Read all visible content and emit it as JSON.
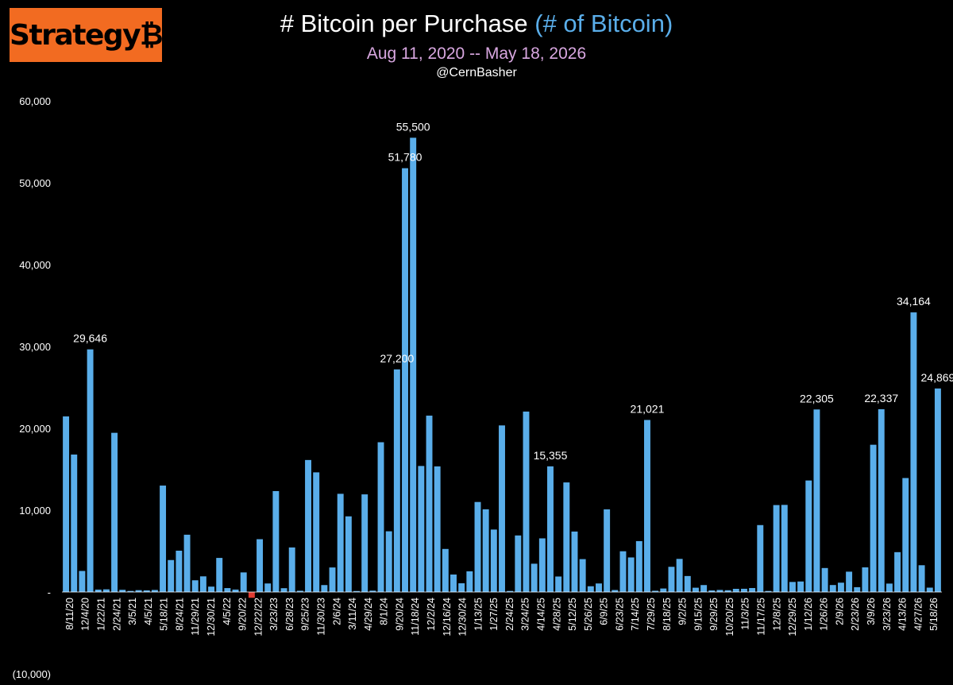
{
  "logo": {
    "text": "Strategy₿"
  },
  "title": {
    "main": "# Bitcoin per Purchase",
    "accent": "(# of Bitcoin)"
  },
  "subtitle": "Aug 11, 2020 -- May 18, 2026",
  "handle": "@CernBasher",
  "colors": {
    "bar": "#5aaeea",
    "negative": "#e03c31",
    "background": "#000000",
    "accent": "#5aaeea",
    "subtitle": "#d8a7e0",
    "logo_bg": "#f26b21"
  },
  "chart_data": {
    "type": "bar",
    "title": "# Bitcoin per Purchase (# of Bitcoin)",
    "subtitle": "Aug 11, 2020 -- May 18, 2026",
    "ylim": [
      -10000,
      60000
    ],
    "y_ticks": [
      -10000,
      0,
      10000,
      20000,
      30000,
      40000,
      50000,
      60000
    ],
    "y_tick_labels": [
      "(10,000)",
      "-",
      "10,000",
      "20,000",
      "30,000",
      "40,000",
      "50,000",
      "60,000"
    ],
    "grid": false,
    "x_tick_labels": [
      "8/11/20",
      "12/4/20",
      "1/22/21",
      "2/24/21",
      "3/5/21",
      "4/5/21",
      "5/18/21",
      "8/24/21",
      "11/29/21",
      "12/30/21",
      "4/5/22",
      "9/20/22",
      "12/22/22",
      "3/23/23",
      "6/28/23",
      "9/25/23",
      "11/30/23",
      "2/6/24",
      "3/11/24",
      "4/29/24",
      "8/1/24",
      "9/20/24",
      "11/18/24",
      "12/2/24",
      "12/16/24",
      "12/30/24",
      "1/13/25",
      "1/27/25",
      "2/24/25",
      "3/24/25",
      "4/14/25",
      "4/28/25",
      "5/12/25",
      "5/26/25",
      "6/9/25",
      "6/23/25",
      "7/14/25",
      "7/29/25",
      "8/18/25",
      "9/2/25",
      "9/15/25",
      "9/29/25",
      "10/20/25",
      "11/3/25",
      "11/17/25",
      "12/8/25",
      "12/29/25",
      "1/12/26",
      "1/26/26",
      "2/9/26",
      "2/23/26",
      "3/9/26",
      "3/23/26",
      "4/13/26",
      "4/27/26",
      "5/18/26"
    ],
    "values": [
      21454,
      16796,
      2574,
      29646,
      295,
      328,
      19452,
      271,
      130,
      229,
      205,
      253,
      13005,
      3907,
      5050,
      7002,
      1434,
      1914,
      660,
      4167,
      480,
      301,
      2395,
      -704,
      6455,
      1045,
      12333,
      467,
      5445,
      155,
      16130,
      14620,
      850,
      3000,
      12000,
      9245,
      122,
      11931,
      169,
      18300,
      7420,
      27200,
      51780,
      55500,
      15400,
      21550,
      15350,
      5262,
      2138,
      1070,
      2530,
      11000,
      10107,
      7633,
      20356,
      130,
      6911,
      22048,
      3459,
      6556,
      15355,
      1895,
      13390,
      7390,
      4020,
      705,
      1045,
      10100,
      245,
      4980,
      4225,
      6220,
      21021,
      155,
      430,
      3081,
      4048,
      1955,
      525,
      850,
      196,
      255,
      220,
      390,
      397,
      487,
      8178,
      130,
      10624,
      10645,
      1229,
      1287,
      13627,
      22305,
      2932,
      855,
      1142,
      2486,
      592,
      3015,
      17994,
      22337,
      1031,
      4871,
      13927,
      34164,
      3273,
      535,
      24869
    ],
    "data_labels": [
      {
        "index": 3,
        "text": "29,646"
      },
      {
        "index": 41,
        "text": "27,200"
      },
      {
        "index": 42,
        "text": "51,780"
      },
      {
        "index": 43,
        "text": "55,500"
      },
      {
        "index": 60,
        "text": "15,355"
      },
      {
        "index": 72,
        "text": "21,021"
      },
      {
        "index": 93,
        "text": "22,305"
      },
      {
        "index": 101,
        "text": "22,337"
      },
      {
        "index": 105,
        "text": "34,164"
      },
      {
        "index": 108,
        "text": "24,869"
      }
    ]
  }
}
